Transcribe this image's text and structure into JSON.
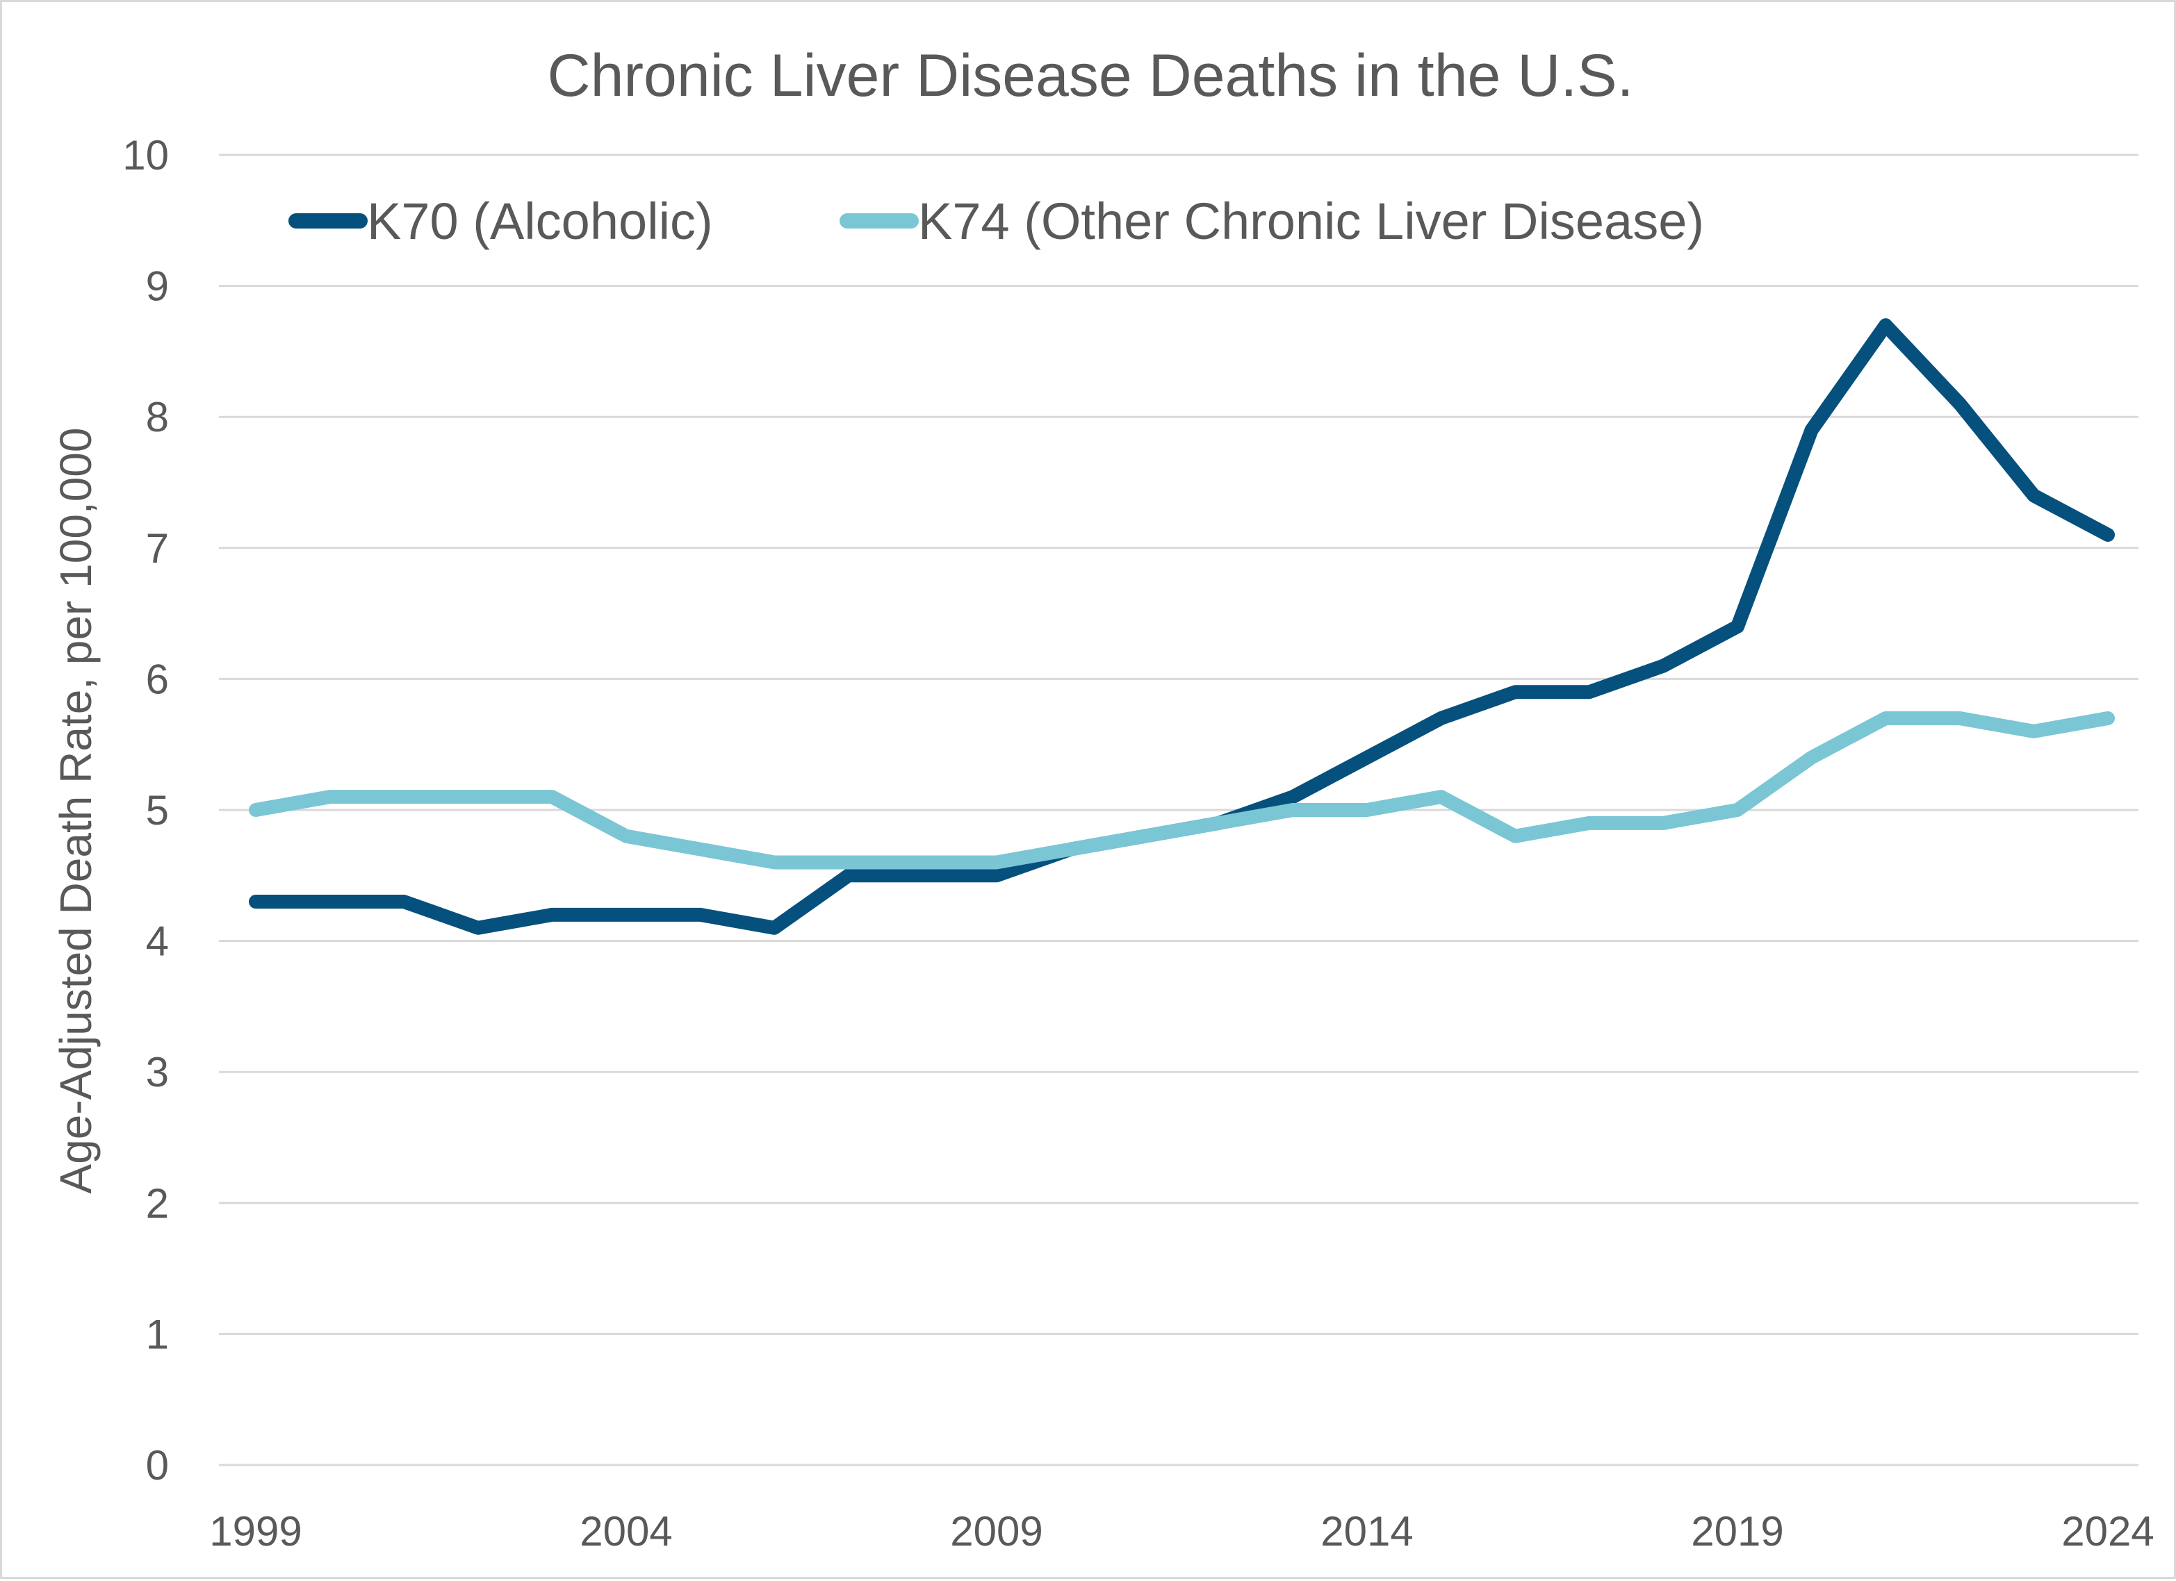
{
  "chart_data": {
    "type": "line",
    "title": "Chronic Liver Disease Deaths in the U.S.",
    "xlabel": "",
    "ylabel": "Age-Adjusted Death Rate, per 100,000",
    "ylim": [
      0,
      10
    ],
    "xlim": [
      1999,
      2024
    ],
    "y_ticks": [
      0,
      1,
      2,
      3,
      4,
      5,
      6,
      7,
      8,
      9,
      10
    ],
    "x_ticks": [
      1999,
      2004,
      2009,
      2014,
      2019,
      2024
    ],
    "grid": "horizontal",
    "legend_position": "top-left",
    "x": [
      1999,
      2000,
      2001,
      2002,
      2003,
      2004,
      2005,
      2006,
      2007,
      2008,
      2009,
      2010,
      2011,
      2012,
      2013,
      2014,
      2015,
      2016,
      2017,
      2018,
      2019,
      2020,
      2021,
      2022,
      2023,
      2024
    ],
    "series": [
      {
        "name": "K70 (Alcoholic)",
        "color": "#05507c",
        "values": [
          4.3,
          4.3,
          4.3,
          4.1,
          4.2,
          4.2,
          4.2,
          4.1,
          4.5,
          4.5,
          4.5,
          4.7,
          4.8,
          4.9,
          5.1,
          5.4,
          5.7,
          5.9,
          5.9,
          6.1,
          6.4,
          7.9,
          8.7,
          8.1,
          7.4,
          7.1
        ]
      },
      {
        "name": "K74 (Other Chronic Liver Disease)",
        "color": "#7ac6d5",
        "values": [
          5.0,
          5.1,
          5.1,
          5.1,
          5.1,
          4.8,
          4.7,
          4.6,
          4.6,
          4.6,
          4.6,
          4.7,
          4.8,
          4.9,
          5.0,
          5.0,
          5.1,
          4.8,
          4.9,
          4.9,
          5.0,
          5.4,
          5.7,
          5.7,
          5.6,
          5.7
        ]
      }
    ]
  }
}
